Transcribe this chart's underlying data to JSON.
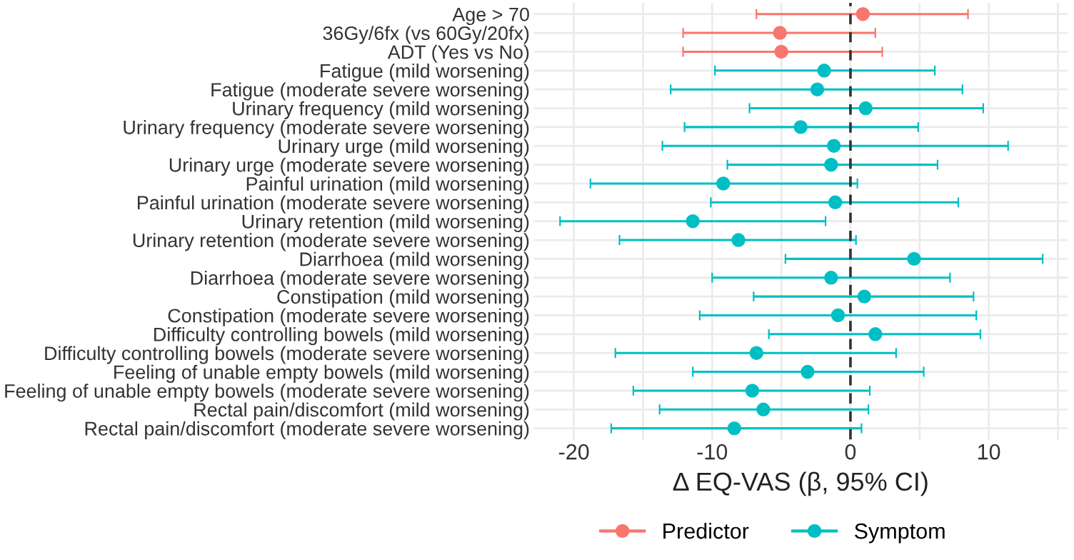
{
  "chart_data": {
    "type": "scatter",
    "orientation": "horizontal",
    "xlabel": "Δ EQ-VAS (β, 95% CI)",
    "categories": [
      "Age > 70",
      "36Gy/6fx (vs 60Gy/20fx)",
      "ADT (Yes vs No)",
      "Fatigue (mild worsening)",
      "Fatigue (moderate severe worsening)",
      "Urinary frequency (mild worsening)",
      "Urinary frequency (moderate severe worsening)",
      "Urinary urge (mild worsening)",
      "Urinary urge (moderate severe worsening)",
      "Painful urination (mild worsening)",
      "Painful urination (moderate severe worsening)",
      "Urinary retention (mild worsening)",
      "Urinary retention (moderate severe worsening)",
      "Diarrhoea (mild worsening)",
      "Diarrhoea (moderate severe worsening)",
      "Constipation (mild worsening)",
      "Constipation (moderate severe worsening)",
      "Difficulty controlling bowels (mild worsening)",
      "Difficulty controlling bowels (moderate severe worsening)",
      "Feeling of unable empty bowels (mild worsening)",
      "Feeling of unable empty bowels (moderate severe worsening)",
      "Rectal pain/discomfort (mild worsening)",
      "Rectal pain/discomfort (moderate severe worsening)"
    ],
    "series": [
      {
        "name": "Predictor",
        "color": "#f8766d",
        "values": [
          0.9,
          -5.1,
          -5.0,
          null,
          null,
          null,
          null,
          null,
          null,
          null,
          null,
          null,
          null,
          null,
          null,
          null,
          null,
          null,
          null,
          null,
          null,
          null,
          null
        ],
        "errors": [
          [
            -6.8,
            8.5
          ],
          [
            -12.1,
            1.8
          ],
          [
            -12.1,
            2.3
          ],
          null,
          null,
          null,
          null,
          null,
          null,
          null,
          null,
          null,
          null,
          null,
          null,
          null,
          null,
          null,
          null,
          null,
          null,
          null,
          null
        ]
      },
      {
        "name": "Symptom",
        "color": "#00bfc4",
        "values": [
          null,
          null,
          null,
          -1.9,
          -2.4,
          1.1,
          -3.6,
          -1.2,
          -1.4,
          -9.2,
          -1.1,
          -11.4,
          -8.1,
          4.6,
          -1.4,
          1.0,
          -0.9,
          1.8,
          -6.8,
          -3.1,
          -7.1,
          -6.3,
          -8.4
        ],
        "errors": [
          null,
          null,
          null,
          [
            -9.8,
            6.1
          ],
          [
            -13.0,
            8.1
          ],
          [
            -7.3,
            9.6
          ],
          [
            -12.0,
            4.9
          ],
          [
            -13.6,
            11.4
          ],
          [
            -8.9,
            6.3
          ],
          [
            -18.8,
            0.5
          ],
          [
            -10.1,
            7.8
          ],
          [
            -21.0,
            -1.8
          ],
          [
            -16.7,
            0.4
          ],
          [
            -4.7,
            13.9
          ],
          [
            -10.0,
            7.2
          ],
          [
            -7.0,
            8.9
          ],
          [
            -10.9,
            9.1
          ],
          [
            -5.9,
            9.4
          ],
          [
            -17.0,
            3.3
          ],
          [
            -11.4,
            5.3
          ],
          [
            -15.7,
            1.4
          ],
          [
            -13.8,
            1.3
          ],
          [
            -17.3,
            0.8
          ]
        ]
      }
    ],
    "xlim": [
      -22.9,
      15.7
    ],
    "xticks": [
      {
        "value": -15,
        "label": null
      },
      -20,
      {
        "value": -5,
        "label": null
      },
      -10,
      {
        "value": 5,
        "label": null
      },
      0,
      {
        "value": 15,
        "label": null
      },
      10
    ],
    "ref_lines": [
      {
        "axis": "x",
        "value": 0,
        "color": "#333333",
        "line_style": "dashed"
      }
    ],
    "grid": true,
    "legend": "bottom",
    "marker": "circle"
  }
}
